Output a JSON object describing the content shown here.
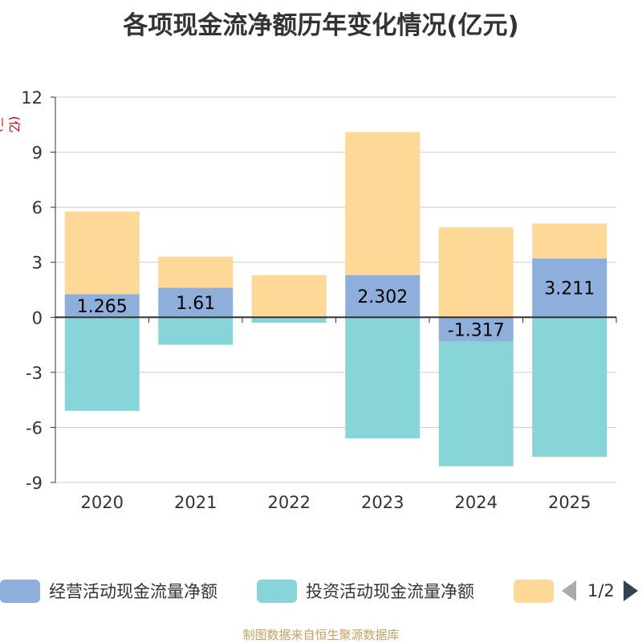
{
  "title": "各项现金流净额历年变化情况(亿元)",
  "source": "制图数据来自恒生聚源数据库",
  "legend": {
    "items": [
      "经营活动现金流量净额",
      "投资活动现金流量净额",
      ""
    ],
    "page_text": "1/2"
  },
  "chart_data": {
    "type": "bar",
    "stacked": true,
    "title": "各项现金流净额历年变化情况(亿元)",
    "xlabel": "",
    "ylabel": "(亿元)",
    "ylim": [
      -9,
      12
    ],
    "yticks": [
      -9,
      -6,
      -3,
      0,
      3,
      6,
      9,
      12
    ],
    "grid": true,
    "legend_position": "bottom",
    "categories": [
      "2020",
      "2021",
      "2022",
      "2023",
      "2024",
      "2025"
    ],
    "series": [
      {
        "name": "经营活动现金流量净额",
        "color": "#8eaedb",
        "values": [
          1.265,
          1.61,
          0.0,
          2.302,
          -1.317,
          3.211
        ],
        "labels": [
          "1.265",
          "1.61",
          "",
          "2.302",
          "-1.317",
          "3.211"
        ]
      },
      {
        "name": "投资活动现金流量净额",
        "color": "#87d5d8",
        "values": [
          -5.1,
          -1.5,
          -0.3,
          -6.6,
          -6.8,
          -7.6
        ]
      },
      {
        "name": "",
        "color": "#fed897",
        "values": [
          4.5,
          1.7,
          2.3,
          7.8,
          4.9,
          1.9
        ]
      }
    ]
  }
}
